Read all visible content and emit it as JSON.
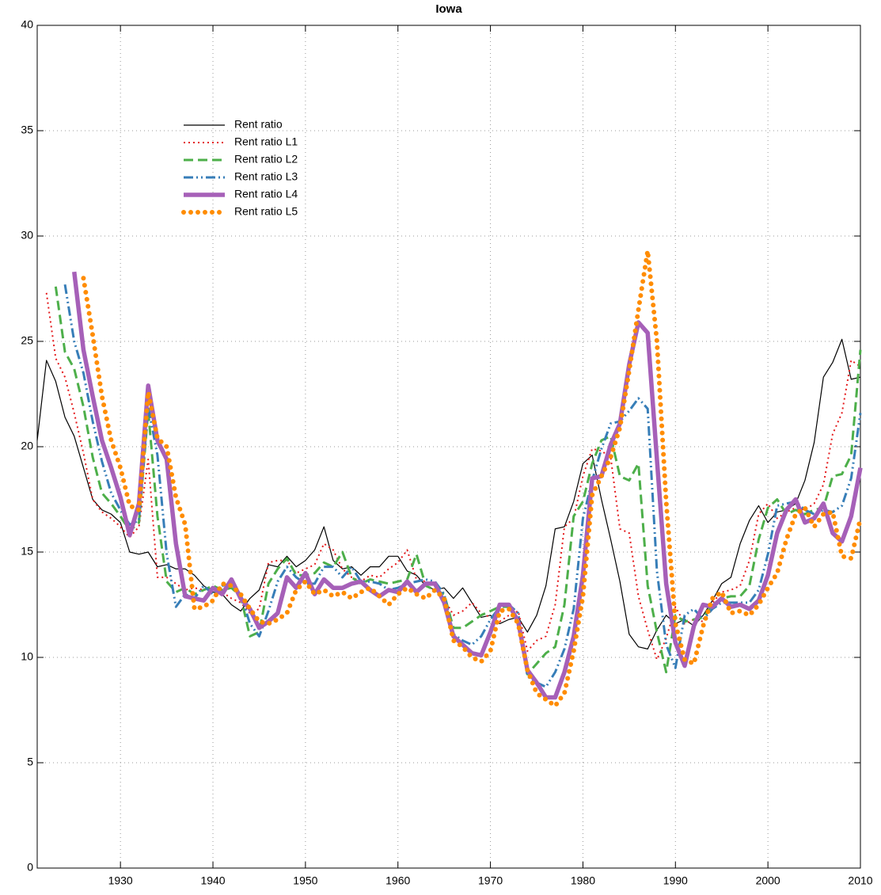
{
  "chart_data": {
    "type": "line",
    "title": "Iowa",
    "x": [
      1921,
      1922,
      1923,
      1924,
      1925,
      1926,
      1927,
      1928,
      1929,
      1930,
      1931,
      1932,
      1933,
      1934,
      1935,
      1936,
      1937,
      1938,
      1939,
      1940,
      1941,
      1942,
      1943,
      1944,
      1945,
      1946,
      1947,
      1948,
      1949,
      1950,
      1951,
      1952,
      1953,
      1954,
      1955,
      1956,
      1957,
      1958,
      1959,
      1960,
      1961,
      1962,
      1963,
      1964,
      1965,
      1966,
      1967,
      1968,
      1969,
      1970,
      1971,
      1972,
      1973,
      1974,
      1975,
      1976,
      1977,
      1978,
      1979,
      1980,
      1981,
      1982,
      1983,
      1984,
      1985,
      1986,
      1987,
      1988,
      1989,
      1990,
      1991,
      1992,
      1993,
      1994,
      1995,
      1996,
      1997,
      1998,
      1999,
      2000,
      2001,
      2002,
      2003,
      2004,
      2005,
      2006,
      2007,
      2008,
      2009,
      2010
    ],
    "series": [
      {
        "name": "Rent ratio",
        "color": "#000000",
        "values": [
          20.3,
          24.1,
          23.1,
          21.4,
          20.5,
          19.0,
          17.5,
          17.0,
          16.8,
          16.4,
          15.0,
          14.9,
          15.0,
          14.3,
          14.4,
          14.2,
          14.2,
          13.9,
          13.4,
          13.1,
          13.0,
          12.5,
          12.2,
          12.8,
          13.2,
          14.4,
          14.3,
          14.8,
          14.3,
          14.6,
          15.1,
          16.2,
          14.6,
          14.2,
          14.3,
          13.9,
          14.3,
          14.3,
          14.8,
          14.8,
          14.1,
          13.9,
          13.4,
          13.2,
          13.3,
          12.8,
          13.3,
          12.6,
          11.9,
          12.0,
          11.6,
          11.8,
          11.9,
          11.2,
          12.0,
          13.4,
          16.1,
          16.2,
          17.4,
          19.2,
          19.6,
          17.5,
          15.6,
          13.6,
          11.1,
          10.5,
          10.4,
          11.3,
          12.0,
          11.6,
          11.8,
          11.5,
          12.0,
          12.7,
          13.5,
          13.8,
          15.4,
          16.5,
          17.2,
          16.4,
          16.9,
          17.0,
          17.3,
          18.4,
          20.2,
          23.3,
          24.0,
          25.1,
          23.2,
          23.3
        ]
      },
      {
        "name": "Rent ratio L1",
        "color": "#e41a1c",
        "values": [
          null,
          27.3,
          24.2,
          23.3,
          21.6,
          19.7,
          17.5,
          16.9,
          16.6,
          16.2,
          15.7,
          16.2,
          19.4,
          13.8,
          13.8,
          13.5,
          13.2,
          13.3,
          13.2,
          13.3,
          13.1,
          12.8,
          12.6,
          12.1,
          12.3,
          14.5,
          14.6,
          14.6,
          14.0,
          14.2,
          14.4,
          15.4,
          15.1,
          14.2,
          13.8,
          13.6,
          13.9,
          13.8,
          14.2,
          14.5,
          15.1,
          13.7,
          13.6,
          13.4,
          12.8,
          12.0,
          12.2,
          12.6,
          12.1,
          11.9,
          11.7,
          12.0,
          12.2,
          10.3,
          10.8,
          11.0,
          12.5,
          16.2,
          16.6,
          18.6,
          19.9,
          19.8,
          19.5,
          16.1,
          15.9,
          12.9,
          11.3,
          9.9,
          10.9,
          12.4,
          11.6,
          11.8,
          11.7,
          12.6,
          13.1,
          13.2,
          13.4,
          14.6,
          16.8,
          17.3,
          16.6,
          16.9,
          17.1,
          17.0,
          17.3,
          18.2,
          20.6,
          21.6,
          24.1,
          23.8
        ]
      },
      {
        "name": "Rent ratio L2",
        "color": "#4daf4a",
        "values": [
          null,
          null,
          27.6,
          24.5,
          23.7,
          21.9,
          19.5,
          17.8,
          17.3,
          16.7,
          16.0,
          16.4,
          21.7,
          16.7,
          13.6,
          13.1,
          13.3,
          13.0,
          13.2,
          13.4,
          13.2,
          13.3,
          12.9,
          11.0,
          11.2,
          13.5,
          14.2,
          14.7,
          13.9,
          13.9,
          14.0,
          14.5,
          14.3,
          15.0,
          13.8,
          13.5,
          13.7,
          13.6,
          13.5,
          13.6,
          13.7,
          14.9,
          13.4,
          13.2,
          13.0,
          11.4,
          11.4,
          11.7,
          12.0,
          12.2,
          12.4,
          12.4,
          11.8,
          9.2,
          9.7,
          10.2,
          10.5,
          12.5,
          16.7,
          17.4,
          19.2,
          20.3,
          20.5,
          18.6,
          18.4,
          19.2,
          13.4,
          11.2,
          9.3,
          12.0,
          11.7,
          11.8,
          11.9,
          12.5,
          12.8,
          12.9,
          12.9,
          13.4,
          15.6,
          17.1,
          17.5,
          16.8,
          17.0,
          16.8,
          17.0,
          17.1,
          18.6,
          18.7,
          19.6,
          24.6
        ]
      },
      {
        "name": "Rent ratio L3",
        "color": "#377eb8",
        "values": [
          null,
          null,
          null,
          27.7,
          25.0,
          23.5,
          21.2,
          19.3,
          17.8,
          17.0,
          16.3,
          16.5,
          21.9,
          19.6,
          14.9,
          12.4,
          13.0,
          12.8,
          13.4,
          13.0,
          13.4,
          13.5,
          13.0,
          11.6,
          11.0,
          12.2,
          13.6,
          14.3,
          13.8,
          13.5,
          13.5,
          14.3,
          14.3,
          13.8,
          14.3,
          13.6,
          13.6,
          13.5,
          13.2,
          13.3,
          13.5,
          13.6,
          13.7,
          13.6,
          13.0,
          11.1,
          10.8,
          10.6,
          11.0,
          11.8,
          12.4,
          12.5,
          12.1,
          9.1,
          8.8,
          8.6,
          9.3,
          10.4,
          12.3,
          16.6,
          18.4,
          19.9,
          21.1,
          21.2,
          21.7,
          22.3,
          21.8,
          14.1,
          10.6,
          9.5,
          12.0,
          12.3,
          11.8,
          12.3,
          12.6,
          12.6,
          12.6,
          12.6,
          13.2,
          14.9,
          17.2,
          17.3,
          17.4,
          17.0,
          16.8,
          17.0,
          16.9,
          17.2,
          18.5,
          21.6
        ]
      },
      {
        "name": "Rent ratio L4",
        "color": "#a660b8",
        "values": [
          null,
          null,
          null,
          null,
          28.3,
          24.6,
          22.4,
          20.3,
          19.0,
          17.6,
          15.8,
          17.3,
          22.9,
          20.3,
          19.4,
          15.4,
          12.9,
          12.8,
          12.7,
          13.3,
          13.0,
          13.7,
          12.8,
          12.3,
          11.4,
          11.7,
          12.1,
          13.8,
          13.3,
          14.0,
          13.0,
          13.7,
          13.3,
          13.3,
          13.5,
          13.6,
          13.2,
          12.9,
          13.2,
          13.1,
          13.6,
          13.1,
          13.5,
          13.5,
          12.6,
          11.0,
          10.6,
          10.2,
          10.1,
          11.2,
          12.5,
          12.5,
          11.7,
          9.4,
          8.8,
          8.1,
          8.1,
          9.3,
          11.0,
          13.9,
          18.5,
          18.6,
          20.1,
          21.1,
          23.9,
          25.9,
          25.4,
          19.4,
          13.5,
          10.7,
          9.6,
          11.5,
          12.5,
          12.4,
          12.8,
          12.4,
          12.5,
          12.3,
          12.7,
          13.9,
          15.9,
          17.0,
          17.5,
          16.4,
          16.6,
          17.3,
          15.9,
          15.5,
          16.7,
          19.0
        ]
      },
      {
        "name": "Rent ratio L5",
        "color": "#ff8c00",
        "values": [
          null,
          null,
          null,
          null,
          null,
          28.0,
          25.3,
          22.4,
          20.3,
          19.0,
          17.2,
          17.0,
          22.6,
          20.4,
          20.0,
          17.6,
          16.3,
          12.3,
          12.4,
          12.7,
          13.5,
          13.4,
          13.0,
          12.3,
          11.7,
          11.6,
          11.8,
          12.1,
          13.2,
          13.6,
          13.0,
          13.2,
          12.9,
          13.1,
          12.8,
          13.1,
          13.3,
          12.9,
          12.5,
          13.0,
          13.3,
          13.0,
          12.8,
          13.2,
          12.8,
          10.8,
          10.5,
          10.0,
          9.8,
          10.3,
          12.2,
          12.3,
          11.6,
          9.4,
          8.3,
          8.0,
          7.7,
          8.3,
          10.3,
          12.9,
          17.7,
          18.6,
          19.5,
          20.9,
          23.6,
          26.5,
          29.3,
          25.0,
          17.4,
          11.6,
          9.9,
          9.7,
          11.5,
          12.8,
          13.1,
          12.1,
          12.2,
          12.0,
          12.5,
          13.3,
          14.0,
          15.6,
          16.8,
          17.1,
          16.2,
          16.8,
          16.9,
          14.8,
          14.7,
          16.6
        ]
      }
    ],
    "xlim": [
      1921,
      2010
    ],
    "xticks": [
      1930,
      1940,
      1950,
      1960,
      1970,
      1980,
      1990,
      2000,
      2010
    ],
    "ylim": [
      0,
      40
    ],
    "yticks": [
      0,
      5,
      10,
      15,
      20,
      25,
      30,
      35,
      40
    ],
    "grid": true,
    "legend": "upper-left"
  }
}
